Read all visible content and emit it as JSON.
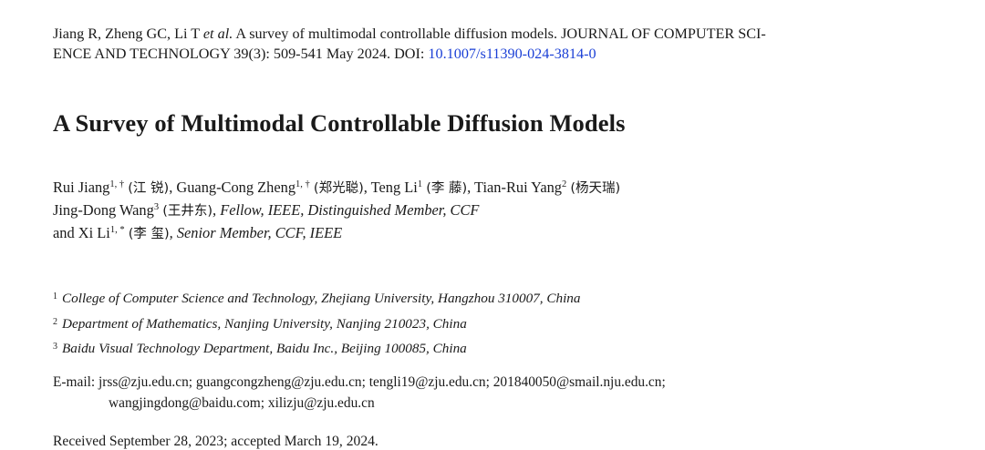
{
  "citation": {
    "text_before": "Jiang R, Zheng GC, Li T ",
    "etal": "et al.",
    "text_middle_line1": " A survey of multimodal controllable diffusion models. JOURNAL OF COMPUTER SCI-",
    "text_line2": "ENCE AND TECHNOLOGY 39(3): 509-541 May 2024. DOI: ",
    "doi": "10.1007/s11390-024-3814-0"
  },
  "title": "A Survey of Multimodal Controllable Diffusion Models",
  "authors": {
    "line1": [
      {
        "name": "Rui Jiang",
        "sup": "1, †",
        "cjk": "(江 锐)",
        "sep": ", "
      },
      {
        "name": "Guang-Cong Zheng",
        "sup": "1, †",
        "cjk": "(郑光聪)",
        "sep": ", "
      },
      {
        "name": "Teng Li",
        "sup": "1",
        "cjk": "(李 藤)",
        "sep": ", "
      },
      {
        "name": "Tian-Rui Yang",
        "sup": "2",
        "cjk": "(杨天瑞)",
        "sep": ""
      }
    ],
    "line2": {
      "name": "Jing-Dong Wang",
      "sup": "3",
      "cjk": "(王井东)",
      "role": ", Fellow, IEEE, Distinguished Member, CCF"
    },
    "line3": {
      "prefix": "and ",
      "name": "Xi Li",
      "sup": "1, *",
      "cjk": "(李 玺)",
      "role": ", Senior Member, CCF, IEEE"
    }
  },
  "affiliations": [
    {
      "num": "1",
      "text": "College of Computer Science and Technology, Zhejiang University, Hangzhou 310007, China"
    },
    {
      "num": "2",
      "text": "Department of Mathematics, Nanjing University, Nanjing 210023, China"
    },
    {
      "num": "3",
      "text": "Baidu Visual Technology Department, Baidu Inc., Beijing 100085, China"
    }
  ],
  "emails": {
    "line1": "E-mail: jrss@zju.edu.cn; guangcongzheng@zju.edu.cn; tengli19@zju.edu.cn; 201840050@smail.nju.edu.cn;",
    "line2": "wangjingdong@baidu.com; xilizju@zju.edu.cn"
  },
  "received": "Received September 28, 2023; accepted March 19, 2024.",
  "colors": {
    "link": "#1a3fd6",
    "text": "#1a1a1a"
  }
}
